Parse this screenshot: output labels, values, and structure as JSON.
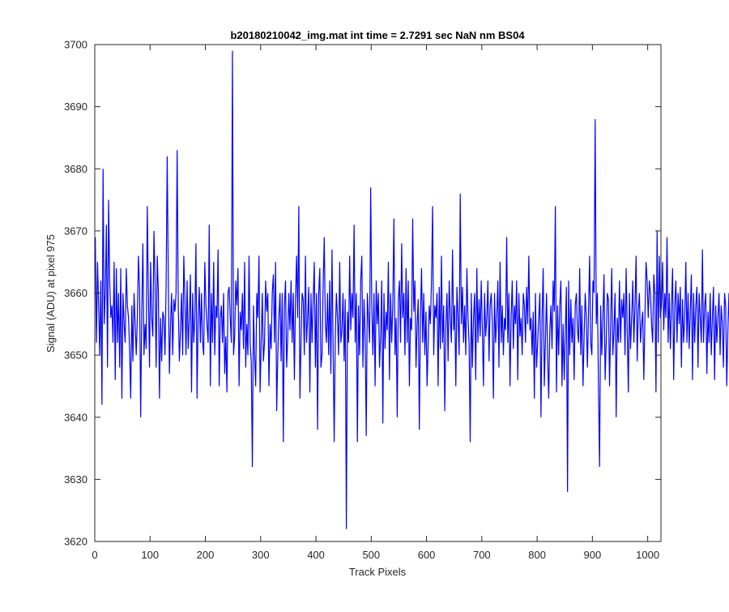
{
  "chart_data": {
    "type": "line",
    "title": "b20180210042_img.mat int time = 2.7291 sec  NaN nm BS04",
    "xlabel": "Track Pixels",
    "ylabel": "Signal (ADU) at pixel 975",
    "xlim": [
      0,
      1024
    ],
    "ylim": [
      3620,
      3700
    ],
    "xticks": [
      0,
      100,
      200,
      300,
      400,
      500,
      600,
      700,
      800,
      900,
      1000
    ],
    "yticks": [
      3620,
      3630,
      3640,
      3650,
      3660,
      3670,
      3680,
      3690,
      3700
    ],
    "grid": false,
    "legend": null,
    "series_color": "#0000ff",
    "series": [
      {
        "x_start": 1,
        "x_step": 2,
        "values": [
          3669,
          3652,
          3665,
          3658,
          3650,
          3662,
          3642,
          3680,
          3655,
          3660,
          3671,
          3648,
          3675,
          3662,
          3656,
          3658,
          3652,
          3665,
          3646,
          3664,
          3652,
          3660,
          3648,
          3664,
          3643,
          3660,
          3655,
          3652,
          3664,
          3658,
          3656,
          3651,
          3643,
          3658,
          3649,
          3660,
          3655,
          3650,
          3656,
          3666,
          3661,
          3640,
          3657,
          3668,
          3650,
          3655,
          3651,
          3674,
          3660,
          3648,
          3665,
          3656,
          3653,
          3670,
          3662,
          3648,
          3666,
          3660,
          3643,
          3656,
          3649,
          3657,
          3656,
          3650,
          3661,
          3682,
          3662,
          3647,
          3655,
          3660,
          3650,
          3659,
          3657,
          3660,
          3683,
          3658,
          3649,
          3654,
          3660,
          3650,
          3666,
          3659,
          3650,
          3662,
          3651,
          3656,
          3663,
          3644,
          3660,
          3652,
          3656,
          3668,
          3643,
          3656,
          3661,
          3652,
          3660,
          3652,
          3650,
          3665,
          3658,
          3655,
          3652,
          3671,
          3645,
          3660,
          3652,
          3665,
          3650,
          3658,
          3656,
          3667,
          3645,
          3656,
          3658,
          3652,
          3660,
          3647,
          3653,
          3644,
          3660,
          3661,
          3656,
          3652,
          3699,
          3650,
          3653,
          3662,
          3658,
          3664,
          3645,
          3657,
          3654,
          3660,
          3651,
          3665,
          3648,
          3655,
          3650,
          3666,
          3652,
          3649,
          3632,
          3658,
          3650,
          3645,
          3660,
          3656,
          3666,
          3644,
          3652,
          3660,
          3649,
          3652,
          3662,
          3657,
          3660,
          3645,
          3655,
          3651,
          3660,
          3663,
          3652,
          3665,
          3641,
          3650,
          3656,
          3660,
          3649,
          3660,
          3636,
          3658,
          3662,
          3648,
          3653,
          3660,
          3654,
          3662,
          3652,
          3660,
          3646,
          3659,
          3666,
          3656,
          3674,
          3643,
          3652,
          3660,
          3659,
          3650,
          3666,
          3652,
          3656,
          3661,
          3644,
          3660,
          3652,
          3659,
          3665,
          3648,
          3660,
          3638,
          3660,
          3664,
          3648,
          3650,
          3661,
          3669,
          3655,
          3652,
          3660,
          3650,
          3662,
          3647,
          3667,
          3652,
          3636,
          3653,
          3660,
          3656,
          3650,
          3665,
          3652,
          3654,
          3660,
          3649,
          3659,
          3622,
          3657,
          3652,
          3666,
          3654,
          3660,
          3656,
          3671,
          3652,
          3660,
          3636,
          3658,
          3650,
          3662,
          3666,
          3648,
          3659,
          3653,
          3637,
          3660,
          3656,
          3652,
          3677,
          3658,
          3650,
          3660,
          3645,
          3662,
          3655,
          3660,
          3648,
          3653,
          3662,
          3639,
          3660,
          3651,
          3657,
          3654,
          3665,
          3646,
          3660,
          3652,
          3658,
          3672,
          3650,
          3656,
          3640,
          3659,
          3662,
          3652,
          3668,
          3656,
          3660,
          3650,
          3664,
          3652,
          3662,
          3645,
          3656,
          3654,
          3672,
          3657,
          3662,
          3648,
          3655,
          3659,
          3638,
          3656,
          3664,
          3652,
          3660,
          3650,
          3657,
          3645,
          3652,
          3658,
          3655,
          3662,
          3674,
          3650,
          3658,
          3656,
          3660,
          3645,
          3661,
          3651,
          3666,
          3652,
          3658,
          3641,
          3655,
          3660,
          3649,
          3662,
          3656,
          3652,
          3667,
          3654,
          3658,
          3645,
          3661,
          3656,
          3650,
          3676,
          3655,
          3661,
          3652,
          3658,
          3650,
          3664,
          3656,
          3652,
          3636,
          3660,
          3648,
          3656,
          3660,
          3646,
          3664,
          3652,
          3659,
          3653,
          3662,
          3654,
          3645,
          3660,
          3653,
          3656,
          3662,
          3649,
          3658,
          3660,
          3655,
          3643,
          3660,
          3652,
          3656,
          3662,
          3648,
          3665,
          3652,
          3658,
          3650,
          3656,
          3654,
          3669,
          3652,
          3660,
          3645,
          3656,
          3662,
          3651,
          3658,
          3655,
          3662,
          3646,
          3660,
          3653,
          3656,
          3650,
          3660,
          3658,
          3652,
          3661,
          3655,
          3666,
          3654,
          3656,
          3650,
          3657,
          3643,
          3660,
          3648,
          3652,
          3656,
          3660,
          3640,
          3656,
          3664,
          3645,
          3652,
          3660,
          3650,
          3643,
          3654,
          3658,
          3651,
          3662,
          3657,
          3674,
          3644,
          3658,
          3650,
          3658,
          3662,
          3645,
          3655,
          3646,
          3654,
          3661,
          3628,
          3662,
          3650,
          3659,
          3652,
          3656,
          3646,
          3658,
          3660,
          3654,
          3652,
          3664,
          3650,
          3658,
          3645,
          3653,
          3660,
          3656,
          3648,
          3657,
          3666,
          3652,
          3650,
          3662,
          3660,
          3688,
          3655,
          3660,
          3645,
          3632,
          3658,
          3650,
          3656,
          3663,
          3646,
          3652,
          3660,
          3659,
          3645,
          3655,
          3664,
          3650,
          3654,
          3660,
          3640,
          3656,
          3652,
          3662,
          3652,
          3659,
          3656,
          3660,
          3650,
          3664,
          3654,
          3644,
          3660,
          3651,
          3656,
          3662,
          3652,
          3658,
          3666,
          3649,
          3657,
          3660,
          3652,
          3655,
          3657,
          3646,
          3656,
          3665,
          3662,
          3656,
          3662,
          3660,
          3655,
          3652,
          3663,
          3660,
          3644,
          3670,
          3652,
          3666,
          3656,
          3658,
          3665,
          3654,
          3660,
          3656,
          3669,
          3652,
          3660,
          3651,
          3658,
          3664,
          3646,
          3658,
          3662,
          3652,
          3660,
          3655,
          3661,
          3648,
          3659,
          3652,
          3656,
          3665,
          3652,
          3660,
          3651,
          3657,
          3663,
          3646,
          3660,
          3652,
          3658,
          3661,
          3648,
          3660,
          3656,
          3652,
          3667,
          3652,
          3658,
          3660,
          3647,
          3657,
          3652,
          3660,
          3650,
          3656,
          3661,
          3646,
          3658,
          3652,
          3656,
          3660,
          3650,
          3658,
          3655,
          3648,
          3660,
          3658,
          3645,
          3654,
          3660,
          3650,
          3658,
          3652,
          3645,
          3662,
          3648,
          3659,
          3644,
          3660,
          3651,
          3658,
          3646,
          3654,
          3662,
          3650,
          3665,
          3648,
          3657,
          3660,
          3652,
          3643,
          3661,
          3656,
          3652,
          3662,
          3645,
          3655,
          3660,
          3650,
          3653,
          3656,
          3663,
          3649,
          3650,
          3656,
          3660,
          3653,
          3656,
          3652,
          3646,
          3660,
          3652,
          3648,
          3656,
          3664,
          3648,
          3660,
          3654,
          3650,
          3663,
          3648,
          3656,
          3660,
          3652,
          3667,
          3651,
          3657,
          3650,
          3659,
          3652,
          3663,
          3648,
          3657,
          3650,
          3660,
          3654,
          3652,
          3661,
          3646,
          3658,
          3652,
          3656,
          3665,
          3650,
          3659,
          3653,
          3656,
          3650,
          3664,
          3648,
          3653,
          3658,
          3644,
          3653,
          3643,
          3660,
          3652,
          3656,
          3662,
          3650,
          3646,
          3664,
          3652,
          3660,
          3656,
          3651,
          3659,
          3650,
          3664,
          3654,
          3662,
          3650,
          3657,
          3642,
          3660,
          3656,
          3662,
          3652,
          3656,
          3665,
          3650,
          3660,
          3654,
          3657,
          3652,
          3661,
          3646,
          3658,
          3653,
          3660,
          3650,
          3662,
          3654,
          3653,
          3660,
          3650,
          3667,
          3652,
          3660,
          3656,
          3648,
          3654,
          3660,
          3644,
          3658,
          3662,
          3652,
          3657,
          3660,
          3654,
          3650,
          3656,
          3652,
          3660,
          3658,
          3662,
          3649,
          3660,
          3656,
          3660,
          3643,
          3655,
          3660,
          3648,
          3672,
          3652,
          3658,
          3660,
          3652,
          3666,
          3650,
          3660,
          3653,
          3656,
          3664,
          3650,
          3657,
          3651,
          3658,
          3660,
          3651,
          3656,
          3660,
          3652,
          3667,
          3650,
          3658,
          3656,
          3660,
          3654,
          3652,
          3660,
          3656,
          3652,
          3658,
          3660,
          3653,
          3656,
          3657,
          3660,
          3652,
          3656,
          3654,
          3659,
          3655,
          3656,
          3660,
          3654,
          3657,
          3660,
          3652,
          3658,
          3660,
          3655,
          3654,
          3656,
          3660,
          3655,
          3657,
          3652,
          3656,
          3660,
          3654,
          3658,
          3656,
          3652,
          3660,
          3656,
          3658,
          3654,
          3657,
          3655,
          3660,
          3652,
          3656,
          3658,
          3660,
          3654,
          3656,
          3657,
          3655,
          3660,
          3656,
          3652,
          3658,
          3660,
          3654,
          3657,
          3656,
          3655,
          3660,
          3653,
          3658,
          3656,
          3660,
          3654,
          3657,
          3655,
          3652,
          3660,
          3656,
          3658,
          3655,
          3657,
          3654,
          3660,
          3656,
          3652,
          3658,
          3655,
          3657,
          3660,
          3654,
          3656,
          3658,
          3652,
          3660,
          3655,
          3656,
          3657,
          3654,
          3660,
          3658,
          3656,
          3652,
          3655,
          3660,
          3657,
          3654,
          3656,
          3658,
          3660,
          3655,
          3652,
          3657,
          3656,
          3660,
          3654,
          3658,
          3655,
          3656,
          3652,
          3660,
          3657,
          3654,
          3656,
          3658,
          3660,
          3655
        ]
      }
    ]
  }
}
